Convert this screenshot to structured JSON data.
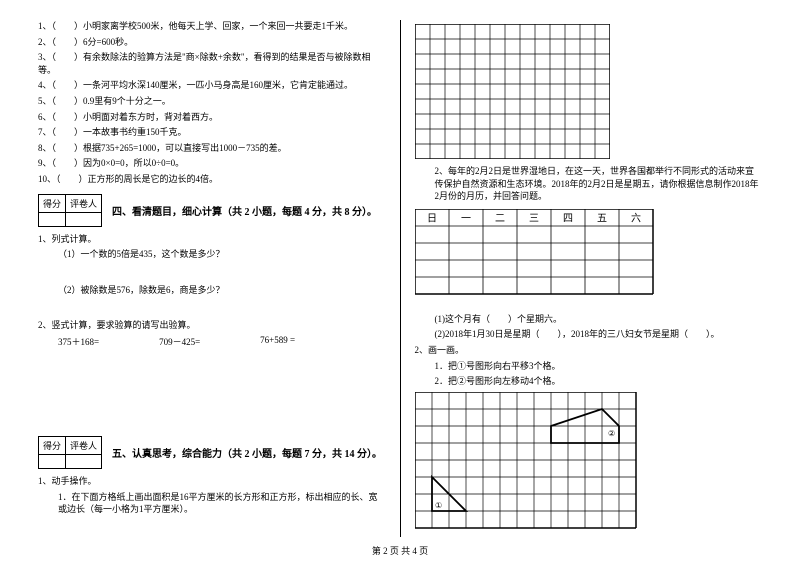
{
  "judgments": [
    "1、（　　）小明家离学校500米，他每天上学、回家，一个来回一共要走1千米。",
    "2、（　　）6分=600秒。",
    "3、（　　）有余数除法的验算方法是\"商×除数+余数\"，看得到的结果是否与被除数相等。",
    "4、（　　）一条河平均水深140厘米，一匹小马身高是160厘米，它肯定能通过。",
    "5、（　　）0.9里有9个十分之一。",
    "6、（　　）小明面对着东方时，背对着西方。",
    "7、（　　）一本故事书约重150千克。",
    "8、（　　）根据735+265=1000，可以直接写出1000－735的差。",
    "9、（　　）因为0×0=0，所以0÷0=0。",
    "10、（　　）正方形的周长是它的边长的4倍。"
  ],
  "scoreLabels": {
    "score": "得分",
    "grader": "评卷人"
  },
  "section4": {
    "title": "四、看清题目，细心计算（共 2 小题，每题 4 分，共 8 分）。",
    "q1": "1、列式计算。",
    "q1a": "（1）一个数的5倍是435，这个数是多少？",
    "q1b": "（2）被除数是576，除数是6，商是多少？",
    "q2": "2、竖式计算，要求验算的请写出验算。",
    "calcA": "375＋168=",
    "calcB": "709－425=",
    "calcC": "76+589 ="
  },
  "section5": {
    "title": "五、认真思考，综合能力（共 2 小题，每题 7 分，共 14 分）。",
    "q1": "1、动手操作。",
    "q1a": "1．在下面方格纸上画出面积是16平方厘米的长方形和正方形，标出相应的长、宽或边长（每一小格为1平方厘米）。"
  },
  "right": {
    "q2": "2、每年的2月2日是世界湿地日，在这一天，世界各国都举行不同形式的活动来宣传保护自然资源和生态环境。2018年的2月2日是星期五，请你根据信息制作2018年2月份的月历，并回答问题。",
    "weekdays": [
      "日",
      "一",
      "二",
      "三",
      "四",
      "五",
      "六"
    ],
    "q2a": "(1)这个月有（　　）个星期六。",
    "q2b": "(2)2018年1月30日是星期（　　），2018年的三八妇女节是星期（　　）。",
    "q3": "2、画一画。",
    "q3a": "1．把①号图形向右平移3个格。",
    "q3b": "2．把②号图形向左移动4个格。",
    "label1": "①",
    "label2": "②"
  },
  "grid": {
    "cell": 15,
    "cols1": 13,
    "rows1": 9,
    "calCols": 7,
    "calRows": 5,
    "cols3": 13,
    "rows3": 8,
    "stroke": "#000000",
    "fill": "#ffffff"
  },
  "footer": "第 2 页 共 4 页"
}
